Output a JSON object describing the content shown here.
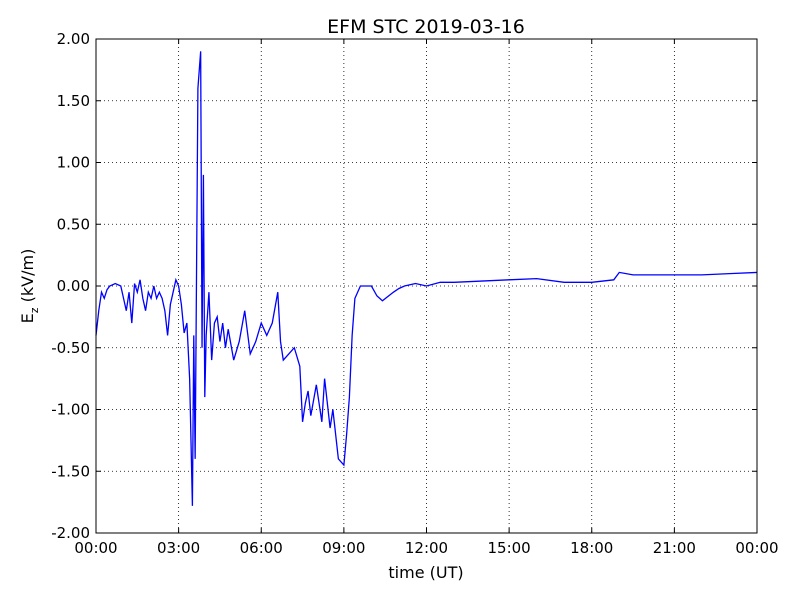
{
  "chart_data": {
    "type": "line",
    "title": "EFM STC    2019-03-16",
    "xlabel": "time (UT)",
    "ylabel": {
      "symbol": "E",
      "subscript": "z",
      "unit": "(kV/m)"
    },
    "xlim": [
      0,
      24
    ],
    "ylim": [
      -2,
      2
    ],
    "grid": true,
    "xticks": [
      {
        "value": 0,
        "label": "00:00"
      },
      {
        "value": 3,
        "label": "03:00"
      },
      {
        "value": 6,
        "label": "06:00"
      },
      {
        "value": 9,
        "label": "09:00"
      },
      {
        "value": 12,
        "label": "12:00"
      },
      {
        "value": 15,
        "label": "15:00"
      },
      {
        "value": 18,
        "label": "18:00"
      },
      {
        "value": 21,
        "label": "21:00"
      },
      {
        "value": 24,
        "label": "00:00"
      }
    ],
    "yticks": [
      {
        "value": -2,
        "label": "-2.00"
      },
      {
        "value": -1.5,
        "label": "-1.50"
      },
      {
        "value": -1,
        "label": "-1.00"
      },
      {
        "value": -0.5,
        "label": "-0.50"
      },
      {
        "value": 0,
        "label": "0.00"
      },
      {
        "value": 0.5,
        "label": "0.50"
      },
      {
        "value": 1,
        "label": "1.00"
      },
      {
        "value": 1.5,
        "label": "1.50"
      },
      {
        "value": 2,
        "label": "2.00"
      }
    ],
    "x": [
      0,
      0.1,
      0.2,
      0.3,
      0.4,
      0.5,
      0.7,
      0.9,
      1.0,
      1.1,
      1.2,
      1.3,
      1.4,
      1.5,
      1.6,
      1.7,
      1.8,
      1.9,
      2.0,
      2.1,
      2.2,
      2.3,
      2.4,
      2.5,
      2.6,
      2.7,
      2.8,
      2.9,
      3.0,
      3.1,
      3.2,
      3.3,
      3.4,
      3.5,
      3.55,
      3.6,
      3.7,
      3.8,
      3.85,
      3.9,
      3.95,
      4.0,
      4.1,
      4.2,
      4.3,
      4.4,
      4.5,
      4.6,
      4.7,
      4.8,
      5.0,
      5.2,
      5.4,
      5.6,
      5.8,
      6.0,
      6.2,
      6.4,
      6.6,
      6.7,
      6.8,
      7.0,
      7.2,
      7.4,
      7.5,
      7.6,
      7.7,
      7.8,
      8.0,
      8.2,
      8.3,
      8.5,
      8.6,
      8.8,
      9.0,
      9.1,
      9.2,
      9.3,
      9.4,
      9.6,
      10.0,
      10.2,
      10.4,
      10.8,
      11.0,
      11.2,
      11.6,
      12.0,
      12.5,
      13.0,
      14.0,
      15.0,
      16.0,
      17.0,
      18.0,
      18.8,
      19.0,
      19.5,
      20.0,
      21.0,
      22.0,
      23.0,
      24.0
    ],
    "series": [
      {
        "color": "#0000ff",
        "values": [
          -0.4,
          -0.2,
          -0.05,
          -0.1,
          -0.03,
          0.0,
          0.02,
          0.0,
          -0.1,
          -0.2,
          -0.05,
          -0.3,
          0.02,
          -0.05,
          0.05,
          -0.1,
          -0.2,
          -0.05,
          -0.1,
          0.0,
          -0.1,
          -0.05,
          -0.1,
          -0.2,
          -0.4,
          -0.15,
          -0.05,
          0.05,
          0.0,
          -0.15,
          -0.38,
          -0.3,
          -0.75,
          -1.78,
          -0.4,
          -1.4,
          1.6,
          1.9,
          -0.5,
          0.9,
          -0.9,
          -0.4,
          -0.05,
          -0.6,
          -0.3,
          -0.25,
          -0.45,
          -0.3,
          -0.5,
          -0.35,
          -0.6,
          -0.45,
          -0.2,
          -0.55,
          -0.45,
          -0.3,
          -0.4,
          -0.3,
          -0.05,
          -0.45,
          -0.6,
          -0.55,
          -0.5,
          -0.65,
          -1.1,
          -0.95,
          -0.85,
          -1.05,
          -0.8,
          -1.1,
          -0.75,
          -1.15,
          -1.0,
          -1.4,
          -1.45,
          -1.2,
          -0.9,
          -0.4,
          -0.1,
          0.0,
          0.0,
          -0.08,
          -0.12,
          -0.05,
          -0.02,
          0.0,
          0.02,
          0.0,
          0.03,
          0.03,
          0.04,
          0.05,
          0.06,
          0.03,
          0.03,
          0.05,
          0.11,
          0.09,
          0.09,
          0.09,
          0.09,
          0.1,
          0.11
        ]
      }
    ]
  }
}
